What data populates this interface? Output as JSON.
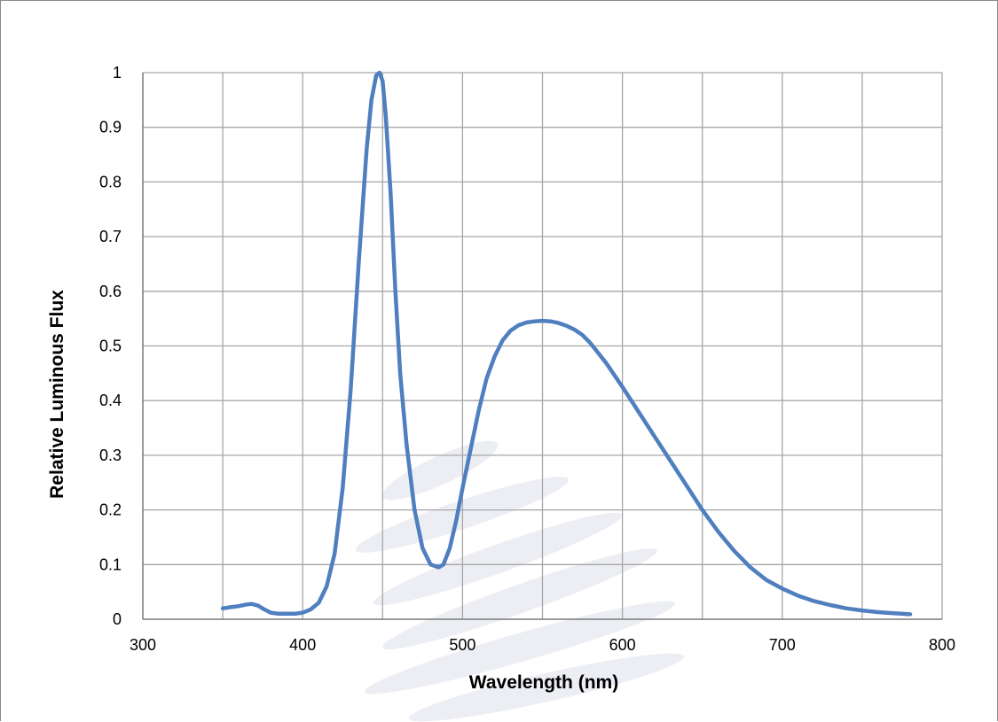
{
  "chart_data": {
    "type": "line",
    "title": "",
    "xlabel": "Wavelength (nm)",
    "ylabel": "Relative Luminous Flux",
    "xlim": [
      300,
      800
    ],
    "ylim": [
      0,
      1
    ],
    "x_ticks": [
      300,
      350,
      400,
      450,
      500,
      550,
      600,
      650,
      700,
      750,
      800
    ],
    "x_tick_labels": [
      "300",
      "400",
      "500",
      "600",
      "700",
      "800"
    ],
    "y_ticks": [
      0,
      0.1,
      0.2,
      0.3,
      0.4,
      0.5,
      0.6,
      0.7,
      0.8,
      0.9,
      1
    ],
    "y_tick_labels": [
      "0",
      "0.1",
      "0.2",
      "0.3",
      "0.4",
      "0.5",
      "0.6",
      "0.7",
      "0.8",
      "0.9",
      "1"
    ],
    "grid": true,
    "legend": "none",
    "colors": {
      "series": "#4f7fbf",
      "grid": "#a6a6a6",
      "axis": "#808080",
      "watermark": "#e4e7ef"
    },
    "series": [
      {
        "x": [
          350,
          355,
          360,
          365,
          368,
          372,
          376,
          380,
          385,
          390,
          395,
          400,
          405,
          410,
          415,
          420,
          425,
          430,
          435,
          440,
          443,
          446,
          448,
          450,
          452,
          455,
          458,
          461,
          465,
          470,
          475,
          480,
          485,
          488,
          492,
          496,
          500,
          505,
          510,
          515,
          520,
          525,
          530,
          535,
          540,
          545,
          550,
          555,
          560,
          565,
          570,
          575,
          580,
          590,
          600,
          610,
          620,
          630,
          640,
          650,
          660,
          670,
          680,
          690,
          700,
          710,
          720,
          730,
          740,
          750,
          760,
          770,
          780
        ],
        "y": [
          0.02,
          0.022,
          0.024,
          0.027,
          0.028,
          0.025,
          0.018,
          0.012,
          0.01,
          0.01,
          0.01,
          0.012,
          0.018,
          0.03,
          0.06,
          0.12,
          0.24,
          0.42,
          0.65,
          0.86,
          0.95,
          0.995,
          1.0,
          0.985,
          0.92,
          0.78,
          0.6,
          0.45,
          0.32,
          0.2,
          0.13,
          0.1,
          0.095,
          0.1,
          0.13,
          0.18,
          0.24,
          0.31,
          0.38,
          0.44,
          0.48,
          0.51,
          0.528,
          0.538,
          0.543,
          0.545,
          0.546,
          0.545,
          0.542,
          0.537,
          0.53,
          0.52,
          0.505,
          0.468,
          0.425,
          0.38,
          0.335,
          0.29,
          0.245,
          0.2,
          0.16,
          0.125,
          0.095,
          0.072,
          0.056,
          0.043,
          0.033,
          0.026,
          0.02,
          0.016,
          0.013,
          0.011,
          0.009
        ]
      }
    ]
  }
}
